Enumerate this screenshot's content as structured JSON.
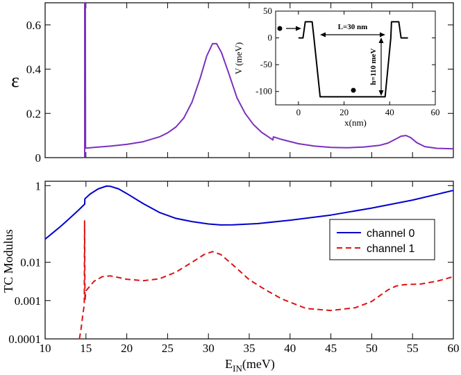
{
  "chart_data": [
    {
      "id": "top",
      "type": "line",
      "xlim": [
        10,
        60
      ],
      "ylim": [
        0,
        0.7
      ],
      "ylabel": "ε",
      "xticks": [
        10,
        15,
        20,
        25,
        30,
        35,
        40,
        45,
        50,
        55,
        60
      ],
      "yticks": [
        {
          "v": 0,
          "label": "0"
        },
        {
          "v": 0.2,
          "label": "0.2"
        },
        {
          "v": 0.4,
          "label": "0.4"
        },
        {
          "v": 0.6,
          "label": "0.6"
        }
      ],
      "series": [
        {
          "name": "epsilon",
          "color": "#7b2fbf",
          "points": [
            [
              14.85,
              0
            ],
            [
              14.85,
              0.7
            ],
            [
              14.92,
              0.7
            ],
            [
              14.95,
              0.05
            ],
            [
              15,
              0.043
            ],
            [
              16,
              0.046
            ],
            [
              18,
              0.052
            ],
            [
              20,
              0.06
            ],
            [
              22,
              0.072
            ],
            [
              24,
              0.094
            ],
            [
              25,
              0.112
            ],
            [
              26,
              0.138
            ],
            [
              27,
              0.18
            ],
            [
              28,
              0.252
            ],
            [
              29,
              0.36
            ],
            [
              29.8,
              0.46
            ],
            [
              30.5,
              0.515
            ],
            [
              31,
              0.515
            ],
            [
              31.6,
              0.475
            ],
            [
              32.5,
              0.38
            ],
            [
              33.5,
              0.27
            ],
            [
              34.5,
              0.2
            ],
            [
              35.5,
              0.15
            ],
            [
              36.5,
              0.115
            ],
            [
              37.5,
              0.09
            ],
            [
              37.9,
              0.08
            ],
            [
              37.95,
              0.094
            ],
            [
              39,
              0.082
            ],
            [
              41,
              0.063
            ],
            [
              43,
              0.052
            ],
            [
              45,
              0.046
            ],
            [
              47,
              0.045
            ],
            [
              49,
              0.048
            ],
            [
              51,
              0.056
            ],
            [
              52,
              0.066
            ],
            [
              53,
              0.085
            ],
            [
              53.6,
              0.097
            ],
            [
              54.2,
              0.1
            ],
            [
              54.8,
              0.09
            ],
            [
              55.5,
              0.068
            ],
            [
              56.5,
              0.05
            ],
            [
              58,
              0.042
            ],
            [
              60,
              0.04
            ]
          ]
        }
      ]
    },
    {
      "id": "inset",
      "type": "line",
      "xlabel": "x(nm)",
      "ylabel": "V (meV)",
      "xlim": [
        -10,
        60
      ],
      "ylim": [
        -125,
        50
      ],
      "xticks": [
        0,
        20,
        40,
        60
      ],
      "yticks": [
        -100,
        -50,
        0,
        50
      ],
      "annotations": {
        "width": "L=30 nm",
        "depth": "h=110 meV"
      },
      "series": [
        {
          "name": "potential",
          "color": "#000000",
          "points": [
            [
              0,
              0
            ],
            [
              2,
              0
            ],
            [
              3,
              30
            ],
            [
              6,
              30
            ],
            [
              6.8,
              0
            ],
            [
              9.5,
              -110
            ],
            [
              38,
              -110
            ],
            [
              40.5,
              0
            ],
            [
              40.8,
              30
            ],
            [
              44,
              30
            ],
            [
              45,
              0
            ],
            [
              48,
              0
            ]
          ]
        }
      ]
    },
    {
      "id": "bottom",
      "type": "line",
      "scale": "log",
      "xlabel": "E",
      "xlabel_sub": "IN",
      "xlabel_unit": "(meV)",
      "ylabel": "TC Modulus",
      "xlim": [
        10,
        60
      ],
      "ylim": [
        0.0001,
        1.3
      ],
      "xticks": [
        10,
        15,
        20,
        25,
        30,
        35,
        40,
        45,
        50,
        55,
        60
      ],
      "yticks": [
        {
          "v": 1,
          "label": "1"
        },
        {
          "v": 0.01,
          "label": "0.01"
        },
        {
          "v": 0.001,
          "label": "0.001"
        },
        {
          "v": 0.0001,
          "label": "0.0001"
        }
      ],
      "legend": {
        "position": "right-middle",
        "entries": [
          "channel 0",
          "channel 1"
        ]
      },
      "series": [
        {
          "name": "channel 0",
          "color": "#0000cc",
          "dash": "solid",
          "points": [
            [
              10,
              0.04
            ],
            [
              11,
              0.06
            ],
            [
              12,
              0.09
            ],
            [
              13,
              0.14
            ],
            [
              14,
              0.22
            ],
            [
              14.85,
              0.33
            ],
            [
              14.86,
              0.45
            ],
            [
              15.5,
              0.6
            ],
            [
              16.5,
              0.82
            ],
            [
              17.5,
              0.97
            ],
            [
              18,
              0.96
            ],
            [
              19,
              0.82
            ],
            [
              20,
              0.62
            ],
            [
              22,
              0.34
            ],
            [
              24,
              0.2
            ],
            [
              26,
              0.14
            ],
            [
              28,
              0.115
            ],
            [
              30,
              0.1
            ],
            [
              31.5,
              0.094
            ],
            [
              33,
              0.095
            ],
            [
              36,
              0.102
            ],
            [
              40,
              0.125
            ],
            [
              45,
              0.17
            ],
            [
              50,
              0.26
            ],
            [
              55,
              0.42
            ],
            [
              60,
              0.75
            ]
          ]
        },
        {
          "name": "channel 1",
          "color": "#dd1111",
          "dash": "dashed",
          "points": [
            [
              14.2,
              0.0001
            ],
            [
              14.4,
              0.00018
            ],
            [
              14.6,
              0.0004
            ],
            [
              14.8,
              0.0008
            ],
            [
              14.83,
              0.12
            ],
            [
              14.88,
              0.001
            ],
            [
              15,
              0.0018
            ],
            [
              16,
              0.0032
            ],
            [
              17,
              0.0042
            ],
            [
              18,
              0.0044
            ],
            [
              19,
              0.004
            ],
            [
              20,
              0.0036
            ],
            [
              22,
              0.0033
            ],
            [
              24,
              0.0037
            ],
            [
              26,
              0.0055
            ],
            [
              28,
              0.01
            ],
            [
              29.5,
              0.016
            ],
            [
              30.5,
              0.019
            ],
            [
              31.5,
              0.016
            ],
            [
              33,
              0.0085
            ],
            [
              35,
              0.0035
            ],
            [
              37,
              0.0019
            ],
            [
              39,
              0.0011
            ],
            [
              42,
              0.00062
            ],
            [
              45,
              0.00055
            ],
            [
              48,
              0.00065
            ],
            [
              50,
              0.00095
            ],
            [
              52,
              0.0019
            ],
            [
              53,
              0.0024
            ],
            [
              54,
              0.0026
            ],
            [
              56,
              0.0027
            ],
            [
              58,
              0.0032
            ],
            [
              60,
              0.0042
            ]
          ]
        }
      ]
    }
  ]
}
